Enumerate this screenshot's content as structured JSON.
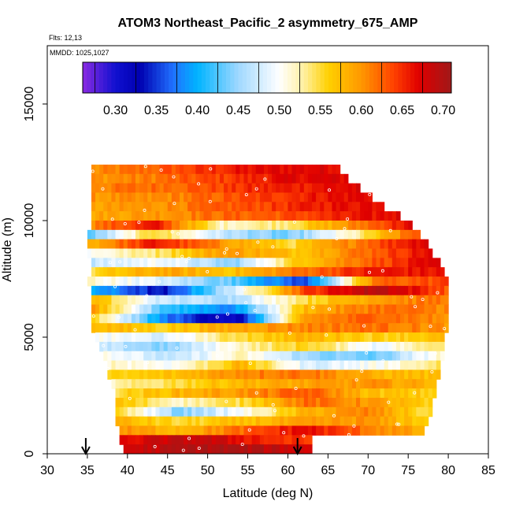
{
  "chart_data": {
    "type": "heatmap",
    "title": "ATOM3 Northeast_Pacific_2 asymmetry_675_AMP",
    "flights_label": "Flts: 12,13",
    "dates_label": "MMDD: 1025,1027",
    "xlabel": "Latitude (deg N)",
    "ylabel": "Altitude (m)",
    "xlim": [
      30,
      85
    ],
    "ylim": [
      0,
      17500
    ],
    "x_ticks": [
      30,
      35,
      40,
      45,
      50,
      55,
      60,
      65,
      70,
      75,
      80,
      85
    ],
    "y_ticks": [
      0,
      5000,
      10000,
      15000
    ],
    "colorbar": {
      "range": [
        0.26,
        0.71
      ],
      "ticks": [
        0.3,
        0.35,
        0.4,
        0.45,
        0.5,
        0.55,
        0.6,
        0.65,
        0.7
      ],
      "tick_labels": [
        "0.30",
        "0.35",
        "0.40",
        "0.45",
        "0.50",
        "0.55",
        "0.60",
        "0.65",
        "0.70"
      ],
      "colors": [
        {
          "v": 0.26,
          "c": "#8a2be2"
        },
        {
          "v": 0.3,
          "c": "#1010d0"
        },
        {
          "v": 0.33,
          "c": "#0000b0"
        },
        {
          "v": 0.37,
          "c": "#2070ff"
        },
        {
          "v": 0.4,
          "c": "#00b4ff"
        },
        {
          "v": 0.45,
          "c": "#a0d8ff"
        },
        {
          "v": 0.5,
          "c": "#ffffff"
        },
        {
          "v": 0.53,
          "c": "#fff0a0"
        },
        {
          "v": 0.56,
          "c": "#ffd000"
        },
        {
          "v": 0.6,
          "c": "#ff9800"
        },
        {
          "v": 0.64,
          "c": "#ff4000"
        },
        {
          "v": 0.67,
          "c": "#e00000"
        },
        {
          "v": 0.71,
          "c": "#a01818"
        }
      ]
    },
    "altitude_bands": [
      {
        "alt": [
          12000,
          12400
        ],
        "lat": [
          35.5,
          66.5
        ],
        "v": [
          0.6,
          0.62,
          0.64,
          0.66,
          0.67,
          0.67
        ]
      },
      {
        "alt": [
          11600,
          12000
        ],
        "lat": [
          35.5,
          67.5
        ],
        "v": [
          0.6,
          0.61,
          0.63,
          0.65,
          0.67,
          0.67
        ]
      },
      {
        "alt": [
          11200,
          11600
        ],
        "lat": [
          35.5,
          69.0
        ],
        "v": [
          0.61,
          0.62,
          0.63,
          0.65,
          0.66,
          0.67
        ]
      },
      {
        "alt": [
          10800,
          11200
        ],
        "lat": [
          35.5,
          70.5
        ],
        "v": [
          0.6,
          0.6,
          0.62,
          0.64,
          0.66,
          0.67
        ]
      },
      {
        "alt": [
          10400,
          10800
        ],
        "lat": [
          35.5,
          72.0
        ],
        "v": [
          0.59,
          0.6,
          0.62,
          0.64,
          0.66,
          0.67
        ]
      },
      {
        "alt": [
          10000,
          10400
        ],
        "lat": [
          35.5,
          74.0
        ],
        "v": [
          0.59,
          0.6,
          0.62,
          0.63,
          0.65,
          0.67
        ]
      },
      {
        "alt": [
          9600,
          10000
        ],
        "lat": [
          35.5,
          75.5
        ],
        "v": [
          0.61,
          0.66,
          0.52,
          0.54,
          0.6,
          0.67
        ]
      },
      {
        "alt": [
          9200,
          9600
        ],
        "lat": [
          35.0,
          76.5
        ],
        "v": [
          0.42,
          0.56,
          0.47,
          0.43,
          0.52,
          0.64
        ]
      },
      {
        "alt": [
          8800,
          9200
        ],
        "lat": [
          35.0,
          77.5
        ],
        "v": [
          0.58,
          0.66,
          0.6,
          0.55,
          0.62,
          0.68
        ]
      },
      {
        "alt": [
          8400,
          8800
        ],
        "lat": [
          35.0,
          78.0
        ],
        "v": [
          0.5,
          0.54,
          0.6,
          0.57,
          0.62,
          0.67
        ]
      },
      {
        "alt": [
          8000,
          8400
        ],
        "lat": [
          35.5,
          79.0
        ],
        "v": [
          0.47,
          0.5,
          0.44,
          0.57,
          0.63,
          0.67
        ]
      },
      {
        "alt": [
          7600,
          8000
        ],
        "lat": [
          35.5,
          79.5
        ],
        "v": [
          0.55,
          0.59,
          0.57,
          0.62,
          0.66,
          0.66
        ]
      },
      {
        "alt": [
          7200,
          7600
        ],
        "lat": [
          35.0,
          80.0
        ],
        "v": [
          0.52,
          0.48,
          0.43,
          0.35,
          0.62,
          0.64
        ]
      },
      {
        "alt": [
          6800,
          7200
        ],
        "lat": [
          35.5,
          80.0
        ],
        "v": [
          0.4,
          0.33,
          0.48,
          0.64,
          0.7,
          0.63
        ]
      },
      {
        "alt": [
          6400,
          6800
        ],
        "lat": [
          35.5,
          80.0
        ],
        "v": [
          0.58,
          0.47,
          0.46,
          0.55,
          0.6,
          0.62
        ]
      },
      {
        "alt": [
          6000,
          6400
        ],
        "lat": [
          35.5,
          80.0
        ],
        "v": [
          0.6,
          0.42,
          0.38,
          0.58,
          0.62,
          0.61
        ]
      },
      {
        "alt": [
          5600,
          6000
        ],
        "lat": [
          35.5,
          80.0
        ],
        "v": [
          0.56,
          0.38,
          0.3,
          0.6,
          0.63,
          0.6
        ]
      },
      {
        "alt": [
          5200,
          5600
        ],
        "lat": [
          35.5,
          80.0
        ],
        "v": [
          0.58,
          0.56,
          0.59,
          0.61,
          0.62,
          0.6
        ]
      },
      {
        "alt": [
          4800,
          5200
        ],
        "lat": [
          36.0,
          79.5
        ],
        "v": [
          0.5,
          0.48,
          0.55,
          0.58,
          0.56,
          0.57
        ]
      },
      {
        "alt": [
          4400,
          4800
        ],
        "lat": [
          36.5,
          79.5
        ],
        "v": [
          0.47,
          0.44,
          0.52,
          0.56,
          0.49,
          0.55
        ]
      },
      {
        "alt": [
          4000,
          4400
        ],
        "lat": [
          37.0,
          79.5
        ],
        "v": [
          0.51,
          0.46,
          0.52,
          0.45,
          0.43,
          0.52
        ]
      },
      {
        "alt": [
          3600,
          4000
        ],
        "lat": [
          37.5,
          79.0
        ],
        "v": [
          0.52,
          0.5,
          0.58,
          0.48,
          0.5,
          0.54
        ]
      },
      {
        "alt": [
          3200,
          3600
        ],
        "lat": [
          37.5,
          79.0
        ],
        "v": [
          0.55,
          0.57,
          0.61,
          0.62,
          0.58,
          0.57
        ]
      },
      {
        "alt": [
          2800,
          3200
        ],
        "lat": [
          38.0,
          78.5
        ],
        "v": [
          0.52,
          0.55,
          0.58,
          0.59,
          0.6,
          0.58
        ]
      },
      {
        "alt": [
          2400,
          2800
        ],
        "lat": [
          38.5,
          78.5
        ],
        "v": [
          0.55,
          0.58,
          0.6,
          0.63,
          0.57,
          0.56
        ]
      },
      {
        "alt": [
          2000,
          2400
        ],
        "lat": [
          38.5,
          78.0
        ],
        "v": [
          0.57,
          0.52,
          0.55,
          0.62,
          0.6,
          0.55
        ]
      },
      {
        "alt": [
          1600,
          2000
        ],
        "lat": [
          38.5,
          78.0
        ],
        "v": [
          0.56,
          0.44,
          0.5,
          0.58,
          0.61,
          0.54
        ]
      },
      {
        "alt": [
          1200,
          1600
        ],
        "lat": [
          38.5,
          77.5
        ],
        "v": [
          0.58,
          0.55,
          0.57,
          0.59,
          0.6,
          0.56
        ]
      },
      {
        "alt": [
          800,
          1200
        ],
        "lat": [
          39.0,
          77.0
        ],
        "v": [
          0.6,
          0.58,
          0.62,
          0.67,
          0.62,
          0.58
        ]
      },
      {
        "alt": [
          400,
          800
        ],
        "lat": [
          39.0,
          63.0
        ],
        "v": [
          0.66,
          0.68,
          0.69,
          0.67,
          0.65,
          0.64
        ]
      },
      {
        "alt": [
          0,
          400
        ],
        "lat": [
          39.5,
          63.0
        ],
        "v": [
          0.68,
          0.69,
          0.7,
          0.7,
          0.69,
          0.68
        ]
      }
    ],
    "arrow_latitudes": [
      34.8,
      61.2
    ]
  }
}
